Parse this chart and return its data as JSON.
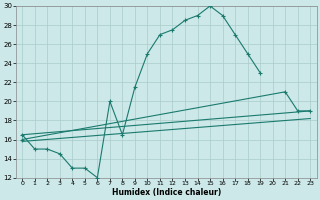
{
  "xlabel": "Humidex (Indice chaleur)",
  "xlim": [
    -0.5,
    23.5
  ],
  "ylim": [
    12,
    30
  ],
  "yticks": [
    12,
    14,
    16,
    18,
    20,
    22,
    24,
    26,
    28,
    30
  ],
  "xticks": [
    0,
    1,
    2,
    3,
    4,
    5,
    6,
    7,
    8,
    9,
    10,
    11,
    12,
    13,
    14,
    15,
    16,
    17,
    18,
    19,
    20,
    21,
    22,
    23
  ],
  "bg_color": "#cce8e8",
  "grid_color": "#aacccc",
  "line_color": "#1a7a6e",
  "curve1_x": [
    0,
    1,
    2,
    3,
    4,
    5,
    6,
    7,
    8,
    9,
    10,
    11,
    12,
    13,
    14,
    15,
    16,
    17,
    18,
    19
  ],
  "curve1_y": [
    16.5,
    15,
    15,
    14.5,
    13,
    13,
    12,
    20,
    16.5,
    21.5,
    25,
    27,
    27.5,
    28.5,
    29,
    30,
    29,
    27,
    25,
    23
  ],
  "line2_x": [
    0,
    23
  ],
  "line2_y": [
    16.5,
    19.0
  ],
  "line3_x": [
    0,
    23
  ],
  "line3_y": [
    15.8,
    18.2
  ],
  "curve4_x": [
    0,
    21,
    22,
    23
  ],
  "curve4_y": [
    16.0,
    21.0,
    19.0,
    19.0
  ]
}
